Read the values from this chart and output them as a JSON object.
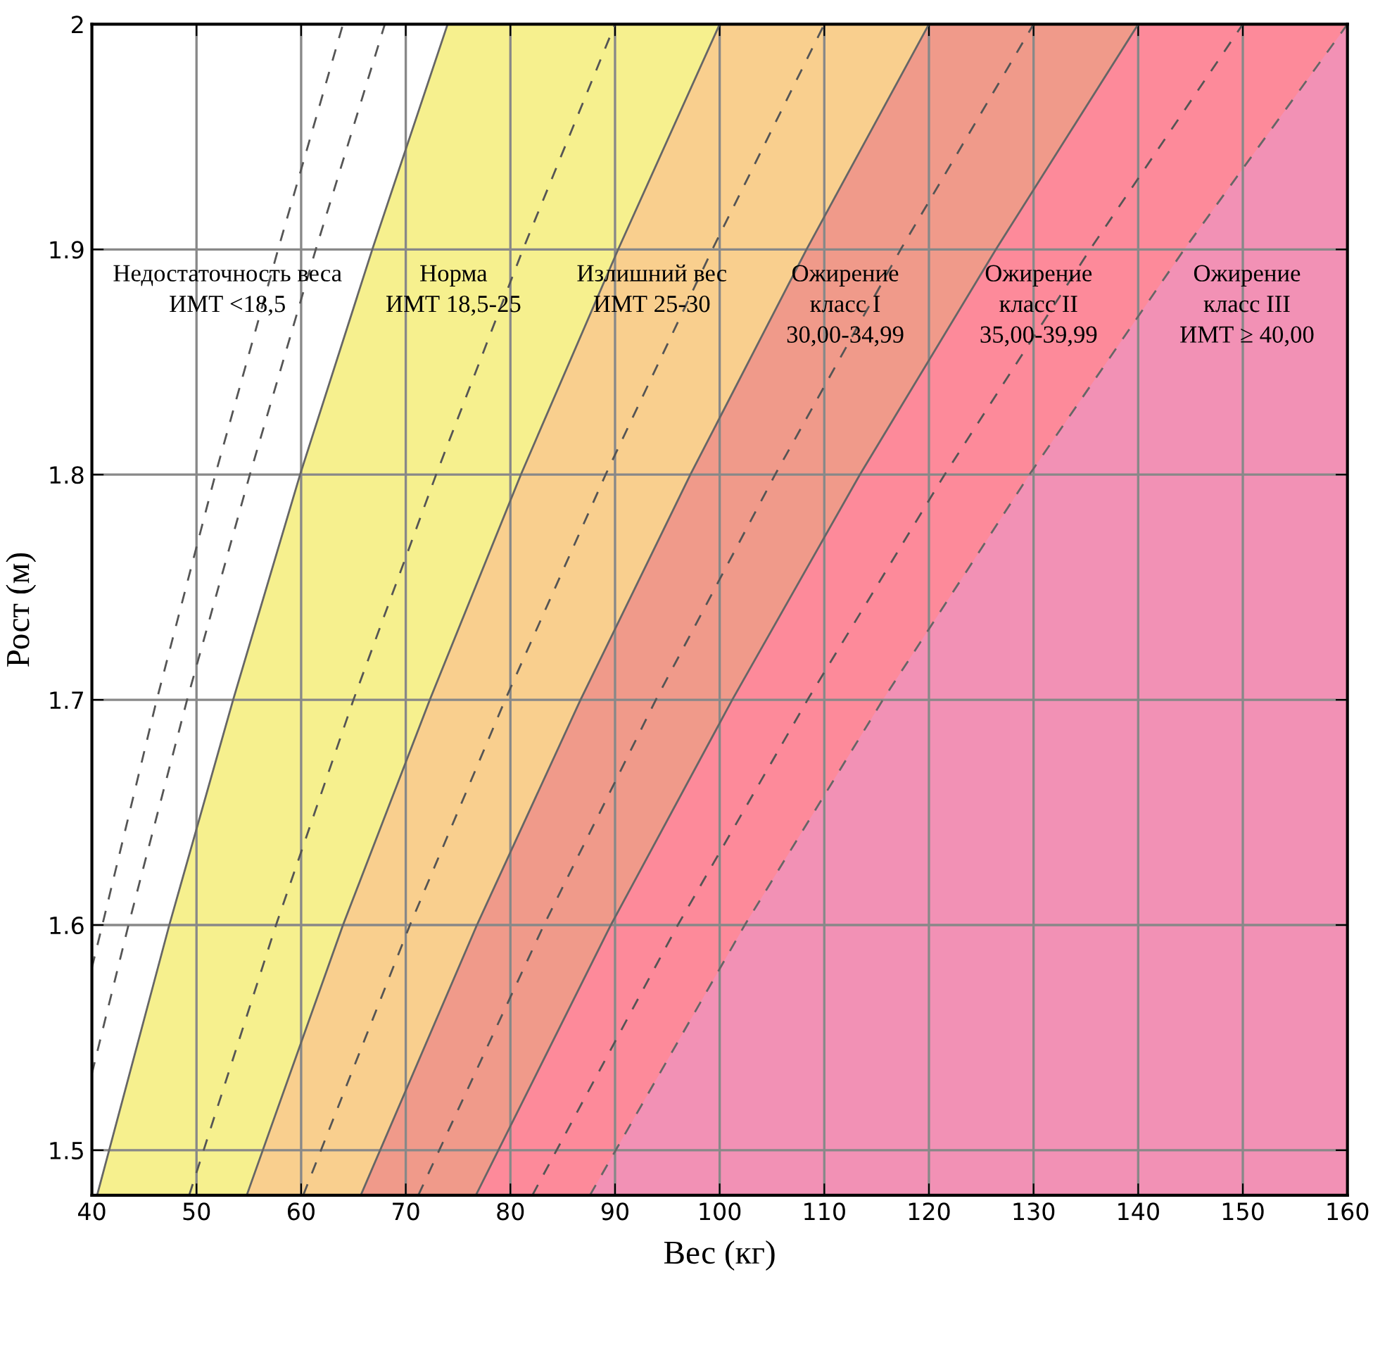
{
  "chart_data": {
    "type": "area",
    "xlabel": "Вес (кг)",
    "ylabel": "Рост (м)",
    "xlim": [
      40,
      160
    ],
    "xticks": [
      40,
      50,
      60,
      70,
      80,
      90,
      100,
      110,
      120,
      130,
      140,
      150,
      160
    ],
    "ylim": [
      1.48,
      2
    ],
    "yticks": [
      1.5,
      1.6,
      1.7,
      1.8,
      1.9,
      2
    ],
    "grid": true,
    "series": [
      {
        "color": "#f6f08e",
        "line_style": "solid",
        "x": [
          40.5,
          47.4,
          53.5,
          59.9,
          66.8,
          74,
          160
        ],
        "values": [
          1.48,
          1.6,
          1.7,
          1.8,
          1.9,
          2,
          2
        ]
      },
      {
        "color": "#f9cf8e",
        "line_style": "solid",
        "x": [
          54.8,
          64,
          72.3,
          81,
          90.3,
          100,
          160
        ],
        "values": [
          1.48,
          1.6,
          1.7,
          1.8,
          1.9,
          2,
          2
        ]
      },
      {
        "color": "#f09a8a",
        "line_style": "solid",
        "x": [
          65.7,
          76.8,
          86.7,
          97.2,
          108.3,
          120,
          160
        ],
        "values": [
          1.48,
          1.6,
          1.7,
          1.8,
          1.9,
          2,
          2
        ]
      },
      {
        "color": "#fd8a9a",
        "line_style": "solid",
        "x": [
          76.7,
          89.6,
          101.2,
          113.4,
          126.4,
          140,
          160
        ],
        "values": [
          1.48,
          1.6,
          1.7,
          1.8,
          1.9,
          2,
          2
        ]
      },
      {
        "color": "#f291b5",
        "line_style": "dashed",
        "x": [
          87.6,
          102.4,
          115.6,
          129.6,
          144.4,
          160
        ],
        "values": [
          1.48,
          1.6,
          1.7,
          1.8,
          1.9,
          2
        ]
      },
      {
        "type": "line",
        "color": "#555555",
        "line_style": "dashed",
        "x": [
          40,
          41.0,
          46.2,
          51.8,
          57.8,
          64
        ],
        "values": [
          1.581,
          1.6,
          1.7,
          1.8,
          1.9,
          2
        ]
      },
      {
        "type": "line",
        "color": "#555555",
        "line_style": "dashed",
        "x": [
          40,
          43.5,
          49.1,
          55.1,
          61.4,
          68
        ],
        "values": [
          1.534,
          1.6,
          1.7,
          1.8,
          1.9,
          2
        ]
      },
      {
        "type": "line",
        "color": "#555555",
        "line_style": "dashed",
        "x": [
          49.3,
          57.6,
          65.0,
          72.9,
          81.2,
          90
        ],
        "values": [
          1.48,
          1.6,
          1.7,
          1.8,
          1.9,
          2
        ]
      },
      {
        "type": "line",
        "color": "#555555",
        "line_style": "dashed",
        "x": [
          60.2,
          70.4,
          79.5,
          89.1,
          99.3,
          110
        ],
        "values": [
          1.48,
          1.6,
          1.7,
          1.8,
          1.9,
          2
        ]
      },
      {
        "type": "line",
        "color": "#555555",
        "line_style": "dashed",
        "x": [
          71.2,
          83.2,
          93.9,
          105.3,
          117.3,
          130
        ],
        "values": [
          1.48,
          1.6,
          1.7,
          1.8,
          1.9,
          2
        ]
      },
      {
        "type": "line",
        "color": "#555555",
        "line_style": "dashed",
        "x": [
          82.1,
          96,
          108.4,
          121.5,
          135.4,
          150
        ],
        "values": [
          1.48,
          1.6,
          1.7,
          1.8,
          1.9,
          2
        ]
      }
    ],
    "annotations": [
      "Недостаточность веса\nИМТ <18,5",
      "Норма\nИМТ 18,5-25",
      "Излишний вес\nИМТ 25-30",
      "Ожирение\nкласс I\n30,00-34,99",
      "Ожирение\nкласс II\n35,00-39,99",
      "Ожирение\nкласс III\nИМТ ≥ 40,00"
    ]
  }
}
